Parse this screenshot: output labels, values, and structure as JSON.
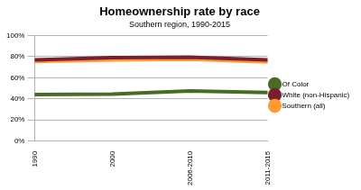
{
  "chart_data": {
    "type": "line",
    "title": "Homeownership rate by race",
    "subtitle": "Southern region, 1990-2015",
    "categories": [
      "1990",
      "2000",
      "2006-2010",
      "2011-2015"
    ],
    "series": [
      {
        "name": "Of Color",
        "color": "#4a6b23",
        "values": [
          44,
          44.5,
          47.5,
          46
        ]
      },
      {
        "name": "White (non-Hispanic)",
        "color": "#7b1f2d",
        "values": [
          77,
          79,
          79.5,
          77
        ]
      },
      {
        "name": "Southern (all)",
        "color": "#ff9933",
        "values": [
          75.5,
          77,
          77.5,
          75
        ]
      }
    ],
    "ylim": [
      0,
      100
    ],
    "yticks": [
      {
        "value": 0,
        "label": "0%"
      },
      {
        "value": 20,
        "label": "20%"
      },
      {
        "value": 40,
        "label": "40%"
      },
      {
        "value": 60,
        "label": "60%"
      },
      {
        "value": 80,
        "label": "80%"
      },
      {
        "value": 100,
        "label": "100%"
      }
    ],
    "grid": true,
    "legend": "right"
  }
}
